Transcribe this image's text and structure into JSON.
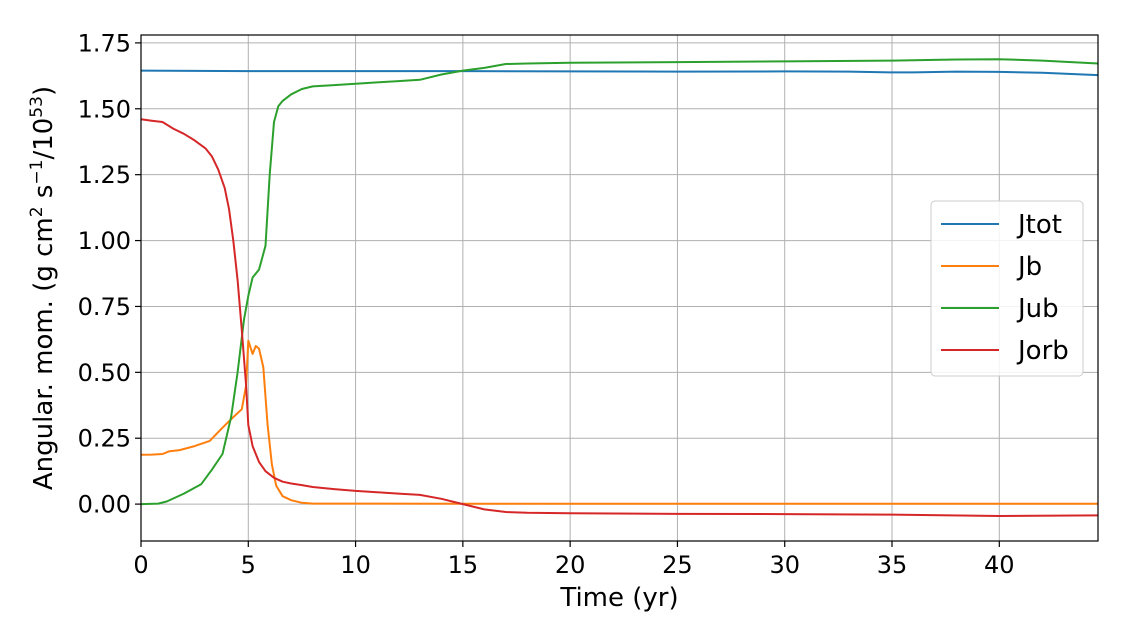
{
  "chart_data": {
    "type": "line",
    "xlabel": "Time (yr)",
    "ylabel_parts": [
      "Angular. mom. (g cm",
      "2",
      " s",
      "−1",
      "/10",
      "53",
      ")"
    ],
    "xlim": [
      0,
      44.6
    ],
    "ylim": [
      -0.14,
      1.78
    ],
    "xticks": [
      0,
      5,
      10,
      15,
      20,
      25,
      30,
      35,
      40
    ],
    "xtick_labels": [
      "0",
      "5",
      "10",
      "15",
      "20",
      "25",
      "30",
      "35",
      "40"
    ],
    "yticks": [
      0,
      0.25,
      0.5,
      0.75,
      1.0,
      1.25,
      1.5,
      1.75
    ],
    "ytick_labels": [
      "0.00",
      "0.25",
      "0.50",
      "0.75",
      "1.00",
      "1.25",
      "1.50",
      "1.75"
    ],
    "grid": true,
    "legend_position": "center-right",
    "series": [
      {
        "name": "Jtot",
        "color": "#1f77b4",
        "x": [
          0,
          5,
          10,
          15,
          20,
          25,
          30,
          33,
          35,
          36,
          38,
          40,
          42,
          44.6
        ],
        "y": [
          1.645,
          1.643,
          1.643,
          1.643,
          1.642,
          1.641,
          1.642,
          1.641,
          1.638,
          1.638,
          1.641,
          1.64,
          1.637,
          1.628
        ]
      },
      {
        "name": "Jb",
        "color": "#ff7f0e",
        "x": [
          0,
          0.5,
          1.0,
          1.3,
          1.8,
          2.5,
          3.2,
          3.8,
          4.3,
          4.7,
          4.9,
          5.0,
          5.2,
          5.35,
          5.5,
          5.7,
          5.9,
          6.1,
          6.3,
          6.6,
          7.0,
          7.5,
          8.0,
          9.0,
          10,
          15,
          20,
          30,
          44.6
        ],
        "y": [
          0.187,
          0.188,
          0.19,
          0.2,
          0.205,
          0.22,
          0.24,
          0.29,
          0.33,
          0.36,
          0.45,
          0.62,
          0.57,
          0.6,
          0.59,
          0.52,
          0.3,
          0.15,
          0.07,
          0.03,
          0.015,
          0.005,
          0.002,
          0.002,
          0.002,
          0.001,
          0.001,
          0.001,
          0.001
        ]
      },
      {
        "name": "Jub",
        "color": "#2ca02c",
        "x": [
          0,
          0.8,
          1.2,
          2.0,
          2.8,
          3.3,
          3.8,
          4.2,
          4.5,
          4.8,
          5.0,
          5.2,
          5.5,
          5.8,
          6.0,
          6.2,
          6.4,
          6.6,
          7.0,
          7.5,
          8.0,
          9.0,
          10,
          11,
          12,
          13,
          14,
          15,
          16,
          17,
          18,
          20,
          25,
          30,
          35,
          38,
          40,
          42,
          44.6
        ],
        "y": [
          0.0,
          0.002,
          0.01,
          0.04,
          0.075,
          0.13,
          0.19,
          0.33,
          0.5,
          0.7,
          0.79,
          0.86,
          0.89,
          0.98,
          1.25,
          1.45,
          1.51,
          1.53,
          1.555,
          1.575,
          1.585,
          1.59,
          1.595,
          1.6,
          1.605,
          1.61,
          1.63,
          1.645,
          1.655,
          1.67,
          1.672,
          1.675,
          1.677,
          1.68,
          1.683,
          1.687,
          1.688,
          1.683,
          1.672
        ]
      },
      {
        "name": "Jorb",
        "color": "#d62728",
        "x": [
          0,
          0.5,
          1.0,
          1.5,
          2.0,
          2.5,
          3.0,
          3.3,
          3.6,
          3.9,
          4.1,
          4.3,
          4.5,
          4.7,
          4.9,
          5.0,
          5.2,
          5.5,
          5.8,
          6.2,
          6.6,
          7.0,
          7.5,
          8.0,
          9.0,
          10,
          11,
          12,
          13,
          14,
          15,
          16,
          17,
          18,
          20,
          25,
          30,
          35,
          40,
          44.6
        ],
        "y": [
          1.46,
          1.455,
          1.45,
          1.425,
          1.405,
          1.38,
          1.35,
          1.32,
          1.27,
          1.2,
          1.12,
          1.0,
          0.85,
          0.66,
          0.45,
          0.3,
          0.22,
          0.16,
          0.125,
          0.1,
          0.085,
          0.078,
          0.072,
          0.065,
          0.057,
          0.05,
          0.045,
          0.04,
          0.035,
          0.02,
          0.0,
          -0.02,
          -0.03,
          -0.033,
          -0.035,
          -0.037,
          -0.038,
          -0.04,
          -0.045,
          -0.043
        ]
      }
    ]
  }
}
